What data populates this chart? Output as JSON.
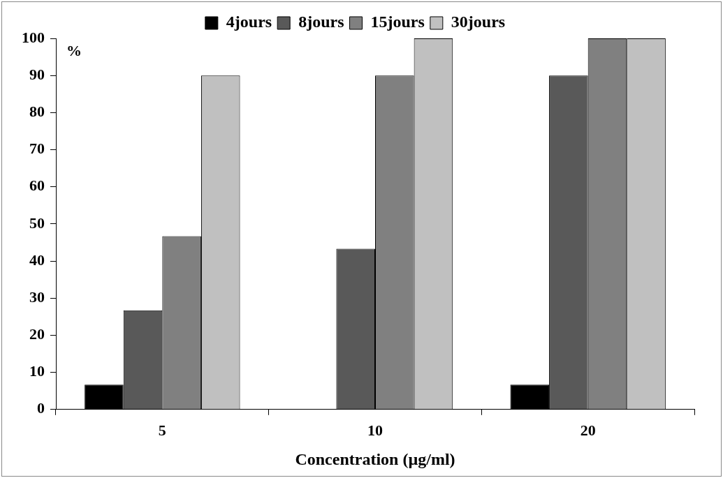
{
  "chart_data": {
    "type": "bar",
    "ylabel": "%",
    "xlabel": "Concentration (µg/ml)",
    "categories": [
      "5",
      "10",
      "20"
    ],
    "series": [
      {
        "name": "4jours",
        "color": "#000000",
        "values": [
          6.7,
          0,
          6.7
        ]
      },
      {
        "name": "8jours",
        "color": "#595959",
        "values": [
          26.7,
          43.3,
          90
        ]
      },
      {
        "name": "15jours",
        "color": "#808080",
        "values": [
          46.7,
          90,
          100
        ]
      },
      {
        "name": "30jours",
        "color": "#c0c0c0",
        "values": [
          90,
          100,
          100
        ]
      }
    ],
    "ylim": [
      0,
      100
    ],
    "yticks": [
      0,
      10,
      20,
      30,
      40,
      50,
      60,
      70,
      80,
      90,
      100
    ],
    "grid": false,
    "legend": "top"
  }
}
